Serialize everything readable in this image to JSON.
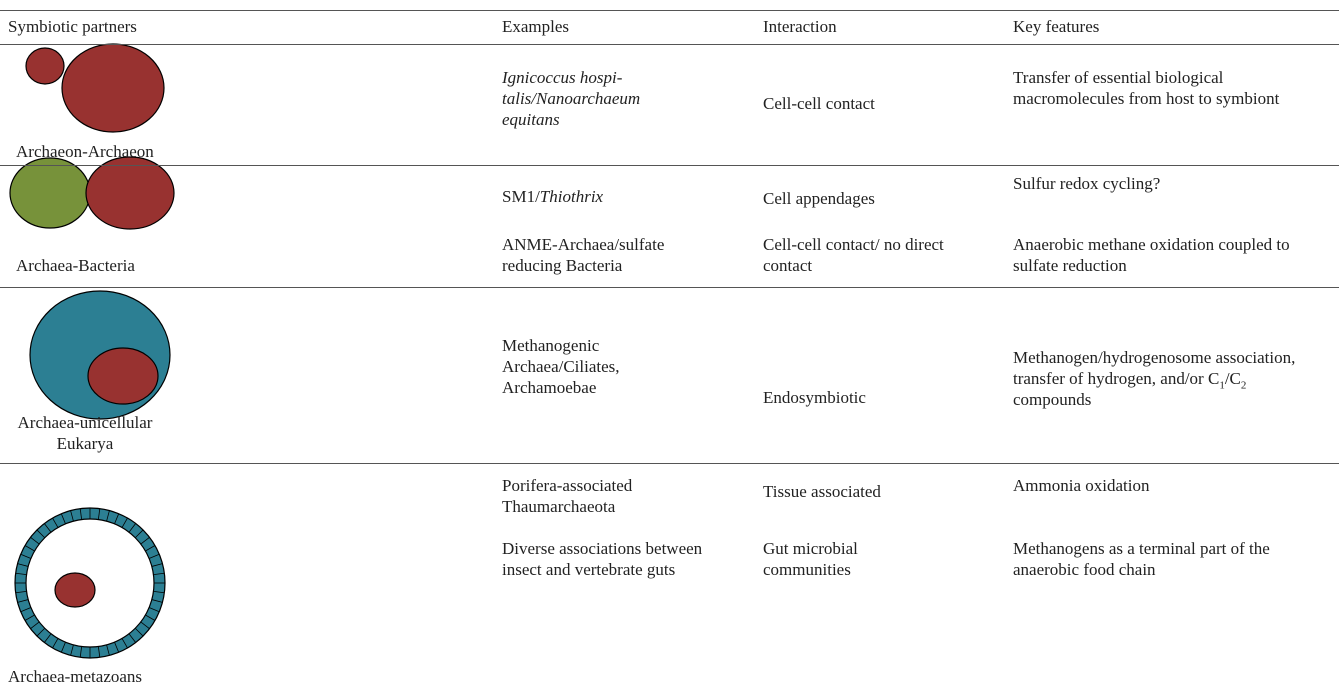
{
  "table": {
    "headers": [
      "Symbiotic partners",
      "Examples",
      "Interaction",
      "Key features"
    ],
    "rows": [
      {
        "partners": "Archaeon-Archaeon",
        "entries": [
          {
            "examples": [
              {
                "text": "Ignicoccus hospi-talis/Nanoarchaeum equitans",
                "italic": true
              }
            ],
            "interaction": "Cell-cell contact",
            "features": [
              {
                "text": "Transfer of essential biological macromolecules from host to symbiont"
              }
            ]
          }
        ]
      },
      {
        "partners": "Archaea-Bacteria",
        "entries": [
          {
            "examples": [
              {
                "text": "SM1/"
              },
              {
                "text": "Thiothrix",
                "italic": true
              }
            ],
            "interaction": "Cell appendages",
            "features": [
              {
                "text": "Sulfur redox cycling?"
              }
            ]
          },
          {
            "examples": [
              {
                "text": "ANME-Archaea/sulfate reducing Bacteria"
              }
            ],
            "interaction": "Cell-cell contact/ no direct contact",
            "features": [
              {
                "text": "Anaerobic methane oxidation coupled to sulfate reduction"
              }
            ]
          }
        ]
      },
      {
        "partners": "Archaea-unicellular Eukarya",
        "entries": [
          {
            "examples": [
              {
                "text": "Methanogenic Archaea/Ciliates, Archamoebae"
              }
            ],
            "interaction": "Endosymbiotic",
            "features": [
              {
                "text": "Methanogen/hydrogenosome association, transfer of hydrogen, and/or C"
              },
              {
                "text": "1",
                "sub": true
              },
              {
                "text": "/C"
              },
              {
                "text": "2",
                "sub": true
              },
              {
                "text": " compounds"
              }
            ]
          }
        ]
      },
      {
        "partners": "Archaea-metazoans",
        "entries": [
          {
            "examples": [
              {
                "text": "Porifera-associated Thaumarchaeota"
              }
            ],
            "interaction": "Tissue associated",
            "features": [
              {
                "text": "Ammonia oxidation"
              }
            ]
          },
          {
            "examples": [
              {
                "text": "Diverse associations between insect and vertebrate guts"
              }
            ],
            "interaction": "Gut microbial communities",
            "features": [
              {
                "text": "Methanogens as a terminal part of the anaerobic food chain"
              }
            ]
          }
        ]
      }
    ]
  }
}
